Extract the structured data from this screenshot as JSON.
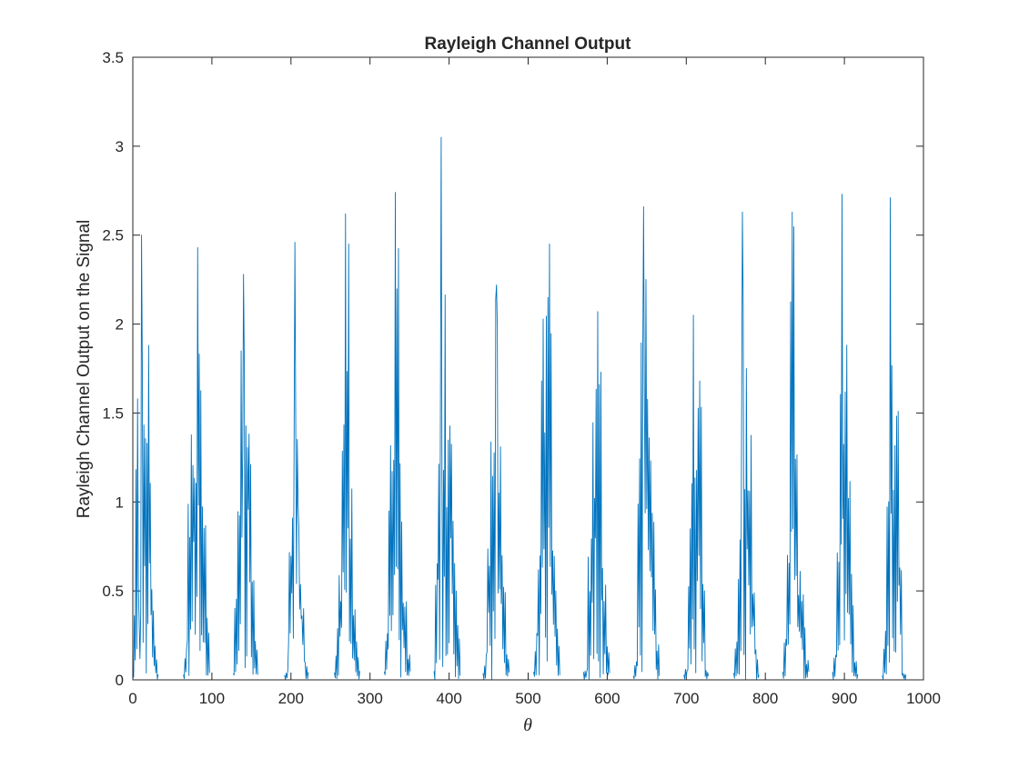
{
  "chart_data": {
    "type": "line",
    "title": "Rayleigh Channel Output",
    "xlabel": "θ",
    "ylabel": "Rayleigh Channel Output on the Signal",
    "xlim": [
      0,
      1000
    ],
    "ylim": [
      0,
      3.5
    ],
    "xticks": [
      0,
      100,
      200,
      300,
      400,
      500,
      600,
      700,
      800,
      900,
      1000
    ],
    "yticks": [
      0,
      0.5,
      1,
      1.5,
      2,
      2.5,
      3,
      3.5
    ],
    "xtick_labels": [
      "0",
      "100",
      "200",
      "300",
      "400",
      "500",
      "600",
      "700",
      "800",
      "900",
      "1000"
    ],
    "ytick_labels": [
      "0",
      "0.5",
      "1",
      "1.5",
      "2",
      "2.5",
      "3",
      "3.5"
    ],
    "grid": false,
    "line_color": "#0072BD",
    "bursts": [
      {
        "x_start": 0,
        "x_end": 32,
        "peak_x": 11,
        "peak": 2.5,
        "top_values": [
          1.17,
          2.5,
          0.5,
          2.02,
          1.57,
          2.05,
          0.65,
          0.33
        ]
      },
      {
        "x_start": 64,
        "x_end": 97,
        "peak_x": 82,
        "peak": 2.43,
        "top_values": [
          0.37,
          1.49,
          2.01,
          1.57,
          2.43,
          1.62,
          0.68
        ]
      },
      {
        "x_start": 127,
        "x_end": 158,
        "peak_x": 140,
        "peak": 2.28,
        "top_values": [
          0.86,
          1.61,
          2.26,
          1.95,
          2.28,
          0.87,
          0.42
        ]
      },
      {
        "x_start": 192,
        "x_end": 222,
        "peak_x": 205,
        "peak": 2.46,
        "top_values": [
          0.14,
          1.27,
          1.52,
          2.46,
          1.05,
          0.68,
          0.24
        ]
      },
      {
        "x_start": 255,
        "x_end": 287,
        "peak_x": 269,
        "peak": 2.62,
        "top_values": [
          0.5,
          0.96,
          1.54,
          2.62,
          1.27,
          0.63,
          0.41
        ]
      },
      {
        "x_start": 318,
        "x_end": 351,
        "peak_x": 332,
        "peak": 2.74,
        "top_values": [
          0.72,
          1.69,
          2.1,
          2.74,
          1.42,
          0.8,
          0.37
        ]
      },
      {
        "x_start": 381,
        "x_end": 414,
        "peak_x": 390,
        "peak": 3.05,
        "top_values": [
          1.26,
          3.05,
          2.26,
          1.59,
          1.96,
          1.18,
          0.58
        ]
      },
      {
        "x_start": 443,
        "x_end": 476,
        "peak_x": 460,
        "peak": 2.22,
        "top_values": [
          0.28,
          1.37,
          2.2,
          2.22,
          1.46,
          0.98,
          0.33
        ]
      },
      {
        "x_start": 507,
        "x_end": 540,
        "peak_x": 527,
        "peak": 2.45,
        "top_values": [
          0.45,
          1.24,
          2.2,
          2.25,
          2.45,
          1.15,
          0.72
        ]
      },
      {
        "x_start": 570,
        "x_end": 603,
        "peak_x": 588,
        "peak": 2.07,
        "top_values": [
          0.12,
          1.02,
          1.61,
          1.89,
          2.07,
          0.84,
          0.43
        ]
      },
      {
        "x_start": 633,
        "x_end": 666,
        "peak_x": 646,
        "peak": 2.66,
        "top_values": [
          0.26,
          1.7,
          2.25,
          2.66,
          1.82,
          1.23,
          0.49
        ]
      },
      {
        "x_start": 697,
        "x_end": 728,
        "peak_x": 709,
        "peak": 2.05,
        "top_values": [
          0.13,
          1.29,
          1.76,
          1.99,
          2.05,
          0.84,
          0.11
        ]
      },
      {
        "x_start": 760,
        "x_end": 792,
        "peak_x": 771,
        "peak": 2.63,
        "top_values": [
          0.46,
          1.37,
          2.63,
          1.89,
          1.61,
          1.07,
          0.38
        ]
      },
      {
        "x_start": 822,
        "x_end": 855,
        "peak_x": 834,
        "peak": 2.63,
        "top_values": [
          0.58,
          1.06,
          2.63,
          1.83,
          0.79,
          0.69,
          0.29
        ]
      },
      {
        "x_start": 885,
        "x_end": 917,
        "peak_x": 897,
        "peak": 2.73,
        "top_values": [
          0.32,
          1.13,
          2.73,
          1.96,
          1.55,
          0.91,
          0.23
        ]
      },
      {
        "x_start": 948,
        "x_end": 978,
        "peak_x": 958,
        "peak": 2.71,
        "top_values": [
          0.62,
          1.59,
          2.71,
          1.77,
          1.86,
          0.98,
          0.07
        ]
      }
    ]
  }
}
